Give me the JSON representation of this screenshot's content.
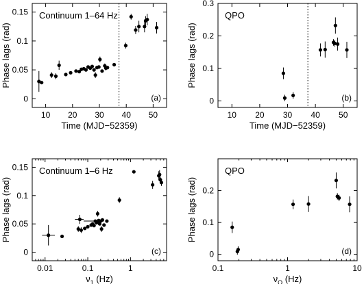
{
  "chart_data": [
    {
      "id": "a",
      "type": "scatter",
      "annotation": "Continuum 1–64 Hz",
      "panel_label": "(a)",
      "xlabel": "Time (MJD−52359)",
      "ylabel": "Phase lags (rad)",
      "xscale": "linear",
      "xlim": [
        5,
        55
      ],
      "ylim": [
        -0.015,
        0.165
      ],
      "xticks": [
        10,
        20,
        30,
        40,
        50
      ],
      "xtick_labels": [
        "10",
        "20",
        "30",
        "40",
        "50"
      ],
      "yticks": [
        0,
        0.05,
        0.1,
        0.15
      ],
      "ytick_labels": [
        "0",
        "0.05",
        "0.1",
        "0.15"
      ],
      "vline": 37.3,
      "points": [
        {
          "x": 7.5,
          "y": 0.03,
          "yerr": 0.018
        },
        {
          "x": 8.5,
          "y": 0.028,
          "yerr": 0
        },
        {
          "x": 12.2,
          "y": 0.041,
          "yerr": 0.005
        },
        {
          "x": 13.8,
          "y": 0.039,
          "yerr": 0.005
        },
        {
          "x": 15.0,
          "y": 0.058,
          "yerr": 0.008
        },
        {
          "x": 17.5,
          "y": 0.042,
          "yerr": 0
        },
        {
          "x": 19.3,
          "y": 0.045,
          "yerr": 0
        },
        {
          "x": 21.3,
          "y": 0.048,
          "yerr": 0
        },
        {
          "x": 22.5,
          "y": 0.047,
          "yerr": 0
        },
        {
          "x": 23.3,
          "y": 0.051,
          "yerr": 0
        },
        {
          "x": 24.2,
          "y": 0.052,
          "yerr": 0
        },
        {
          "x": 25.0,
          "y": 0.05,
          "yerr": 0
        },
        {
          "x": 25.8,
          "y": 0.055,
          "yerr": 0
        },
        {
          "x": 26.6,
          "y": 0.053,
          "yerr": 0
        },
        {
          "x": 27.3,
          "y": 0.056,
          "yerr": 0
        },
        {
          "x": 28.0,
          "y": 0.05,
          "yerr": 0
        },
        {
          "x": 28.5,
          "y": 0.041,
          "yerr": 0.005
        },
        {
          "x": 29.1,
          "y": 0.054,
          "yerr": 0
        },
        {
          "x": 29.8,
          "y": 0.055,
          "yerr": 0
        },
        {
          "x": 30.2,
          "y": 0.068,
          "yerr": 0.005
        },
        {
          "x": 31.0,
          "y": 0.048,
          "yerr": 0
        },
        {
          "x": 32.0,
          "y": 0.057,
          "yerr": 0.004
        },
        {
          "x": 32.4,
          "y": 0.053,
          "yerr": 0.004
        },
        {
          "x": 33.0,
          "y": 0.054,
          "yerr": 0
        },
        {
          "x": 35.5,
          "y": 0.059,
          "yerr": 0
        },
        {
          "x": 39.8,
          "y": 0.092,
          "yerr": 0.005
        },
        {
          "x": 41.8,
          "y": 0.142,
          "yerr": 0.005
        },
        {
          "x": 43.5,
          "y": 0.119,
          "yerr": 0.007
        },
        {
          "x": 44.7,
          "y": 0.125,
          "yerr": 0.01
        },
        {
          "x": 46.8,
          "y": 0.125,
          "yerr": 0.01
        },
        {
          "x": 47.2,
          "y": 0.135,
          "yerr": 0.008
        },
        {
          "x": 47.8,
          "y": 0.137,
          "yerr": 0.01
        },
        {
          "x": 51.3,
          "y": 0.123,
          "yerr": 0.01
        }
      ]
    },
    {
      "id": "b",
      "type": "scatter",
      "annotation": "QPO",
      "panel_label": "(b)",
      "xlabel": "Time (MJD−52359)",
      "ylabel": "Phase lags (rad)",
      "xscale": "linear",
      "xlim": [
        5,
        55
      ],
      "ylim": [
        -0.02,
        0.3
      ],
      "xticks": [
        10,
        20,
        30,
        40,
        50
      ],
      "xtick_labels": [
        "10",
        "20",
        "30",
        "40",
        "50"
      ],
      "yticks": [
        0,
        0.1,
        0.2,
        0.3
      ],
      "ytick_labels": [
        "0",
        "0.1",
        "0.2",
        "0.3"
      ],
      "vline": 37.3,
      "points": [
        {
          "x": 28.5,
          "y": 0.085,
          "yerr": 0.018
        },
        {
          "x": 29.0,
          "y": 0.009,
          "yerr": 0.01
        },
        {
          "x": 32.0,
          "y": 0.017,
          "yerr": 0.01
        },
        {
          "x": 41.8,
          "y": 0.157,
          "yerr": 0.02
        },
        {
          "x": 43.5,
          "y": 0.158,
          "yerr": 0.025
        },
        {
          "x": 46.5,
          "y": 0.18,
          "yerr": 0.01
        },
        {
          "x": 47.0,
          "y": 0.177,
          "yerr": 0.01
        },
        {
          "x": 47.2,
          "y": 0.232,
          "yerr": 0.025
        },
        {
          "x": 48.0,
          "y": 0.175,
          "yerr": 0.02
        },
        {
          "x": 51.3,
          "y": 0.157,
          "yerr": 0.025
        }
      ]
    },
    {
      "id": "c",
      "type": "scatter",
      "annotation": "Continuum 1–6 Hz",
      "panel_label": "(c)",
      "xlabel": "ν₁ (Hz)",
      "ylabel": "Phase lags (rad)",
      "xscale": "log",
      "xlim": [
        0.005,
        7
      ],
      "ylim": [
        -0.015,
        0.165
      ],
      "xticks": [
        0.01,
        0.1,
        1
      ],
      "xtick_labels": [
        "0.01",
        "0.1",
        "1"
      ],
      "yticks": [
        0,
        0.05,
        0.1,
        0.15
      ],
      "ytick_labels": [
        "0",
        "0.05",
        "0.1",
        "0.15"
      ],
      "points": [
        {
          "x": 0.012,
          "y": 0.03,
          "yerr": 0.018,
          "xlo": 0.0085,
          "xhi": 0.017
        },
        {
          "x": 0.025,
          "y": 0.028,
          "yerr": 0
        },
        {
          "x": 0.06,
          "y": 0.041,
          "yerr": 0.005
        },
        {
          "x": 0.065,
          "y": 0.058,
          "yerr": 0.008,
          "xlo": 0.05,
          "xhi": 0.08
        },
        {
          "x": 0.07,
          "y": 0.039,
          "yerr": 0.005
        },
        {
          "x": 0.085,
          "y": 0.042,
          "yerr": 0
        },
        {
          "x": 0.1,
          "y": 0.045,
          "yerr": 0
        },
        {
          "x": 0.12,
          "y": 0.048,
          "yerr": 0
        },
        {
          "x": 0.13,
          "y": 0.05,
          "yerr": 0
        },
        {
          "x": 0.14,
          "y": 0.047,
          "yerr": 0
        },
        {
          "x": 0.15,
          "y": 0.055,
          "yerr": 0,
          "xlo": 0.08,
          "xhi": 0.2
        },
        {
          "x": 0.16,
          "y": 0.052,
          "yerr": 0
        },
        {
          "x": 0.17,
          "y": 0.053,
          "yerr": 0
        },
        {
          "x": 0.17,
          "y": 0.068,
          "yerr": 0.005
        },
        {
          "x": 0.18,
          "y": 0.056,
          "yerr": 0
        },
        {
          "x": 0.19,
          "y": 0.05,
          "yerr": 0
        },
        {
          "x": 0.2,
          "y": 0.055,
          "yerr": 0
        },
        {
          "x": 0.21,
          "y": 0.041,
          "yerr": 0.005
        },
        {
          "x": 0.22,
          "y": 0.057,
          "yerr": 0
        },
        {
          "x": 0.24,
          "y": 0.048,
          "yerr": 0
        },
        {
          "x": 0.28,
          "y": 0.055,
          "yerr": 0
        },
        {
          "x": 0.55,
          "y": 0.092,
          "yerr": 0.005
        },
        {
          "x": 1.2,
          "y": 0.142,
          "yerr": 0.003
        },
        {
          "x": 3.3,
          "y": 0.119,
          "yerr": 0.007
        },
        {
          "x": 4.6,
          "y": 0.135,
          "yerr": 0.008
        },
        {
          "x": 4.8,
          "y": 0.137,
          "yerr": 0.008
        },
        {
          "x": 5.0,
          "y": 0.128,
          "yerr": 0.005
        },
        {
          "x": 5.3,
          "y": 0.123,
          "yerr": 0.006
        }
      ]
    },
    {
      "id": "d",
      "type": "scatter",
      "annotation": "QPO",
      "panel_label": "(d)",
      "xlabel": "ν_Q (Hz)",
      "ylabel": "Phase lags (rad)",
      "xscale": "log",
      "xlim": [
        0.1,
        10
      ],
      "ylim": [
        -0.02,
        0.3
      ],
      "xticks": [
        0.1,
        1,
        10
      ],
      "xtick_labels": [
        "0.1",
        "1",
        "10"
      ],
      "yticks": [
        0,
        0.1,
        0.2
      ],
      "ytick_labels": [
        "0",
        "0.1",
        "0.2"
      ],
      "points": [
        {
          "x": 0.16,
          "y": 0.085,
          "yerr": 0.018
        },
        {
          "x": 0.19,
          "y": 0.009,
          "yerr": 0.01
        },
        {
          "x": 0.195,
          "y": 0.015,
          "yerr": 0.01
        },
        {
          "x": 1.2,
          "y": 0.157,
          "yerr": 0.015
        },
        {
          "x": 2.0,
          "y": 0.158,
          "yerr": 0.025
        },
        {
          "x": 5.0,
          "y": 0.232,
          "yerr": 0.025
        },
        {
          "x": 5.2,
          "y": 0.182,
          "yerr": 0.01
        },
        {
          "x": 5.5,
          "y": 0.177,
          "yerr": 0.01
        },
        {
          "x": 7.8,
          "y": 0.157,
          "yerr": 0.025
        }
      ]
    }
  ]
}
